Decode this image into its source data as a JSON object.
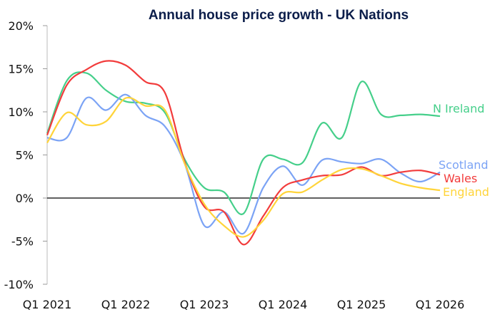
{
  "chart_data": {
    "type": "line",
    "title": "Annual house price growth - UK Nations",
    "xlabel": "",
    "ylabel": "",
    "x": [
      "Q1 2021",
      "Q2 2021",
      "Q3 2021",
      "Q4 2021",
      "Q1 2022",
      "Q2 2022",
      "Q3 2022",
      "Q4 2022",
      "Q1 2023",
      "Q2 2023",
      "Q3 2023",
      "Q4 2023",
      "Q1 2024",
      "Q2 2024",
      "Q3 2024",
      "Q4 2024",
      "Q1 2025",
      "Q2 2025",
      "Q3 2025",
      "Q4 2025",
      "Q1 2026"
    ],
    "x_tick_labels": [
      "Q1 2021",
      "Q1 2022",
      "Q1 2023",
      "Q1 2024",
      "Q1 2025",
      "Q1 2026"
    ],
    "y_tick_labels": [
      "20%",
      "15%",
      "10%",
      "5%",
      "0%",
      "-5%",
      "-10%"
    ],
    "ylim": [
      -10,
      20
    ],
    "grid": false,
    "legend": "direct labels at line ends (right)",
    "series": [
      {
        "name": "N Ireland",
        "color": "#45cf8a",
        "values": [
          7.5,
          13.6,
          14.5,
          12.5,
          11.2,
          11.0,
          9.9,
          4.5,
          1.2,
          0.7,
          -1.8,
          4.5,
          4.5,
          4.1,
          8.7,
          7.0,
          13.5,
          9.7,
          9.6,
          9.7,
          9.5
        ]
      },
      {
        "name": "Scotland",
        "color": "#7ba3f5",
        "values": [
          7.0,
          7.0,
          11.6,
          10.2,
          12.0,
          9.6,
          8.3,
          4.0,
          -3.2,
          -1.6,
          -4.1,
          1.2,
          3.7,
          1.5,
          4.4,
          4.2,
          4.0,
          4.5,
          2.9,
          1.9,
          3.0
        ]
      },
      {
        "name": "Wales",
        "color": "#f23c3c",
        "values": [
          7.3,
          13.1,
          14.9,
          15.9,
          15.4,
          13.5,
          12.2,
          4.2,
          -1.0,
          -1.6,
          -5.4,
          -2.1,
          1.2,
          2.1,
          2.6,
          2.7,
          3.6,
          2.6,
          3.0,
          3.2,
          2.7
        ]
      },
      {
        "name": "England",
        "color": "#ffd43a",
        "values": [
          6.4,
          9.9,
          8.5,
          8.9,
          11.6,
          10.7,
          10.2,
          4.0,
          -0.7,
          -3.2,
          -4.5,
          -2.6,
          0.5,
          0.7,
          2.1,
          3.3,
          3.4,
          2.6,
          1.7,
          1.2,
          0.9
        ]
      }
    ]
  }
}
